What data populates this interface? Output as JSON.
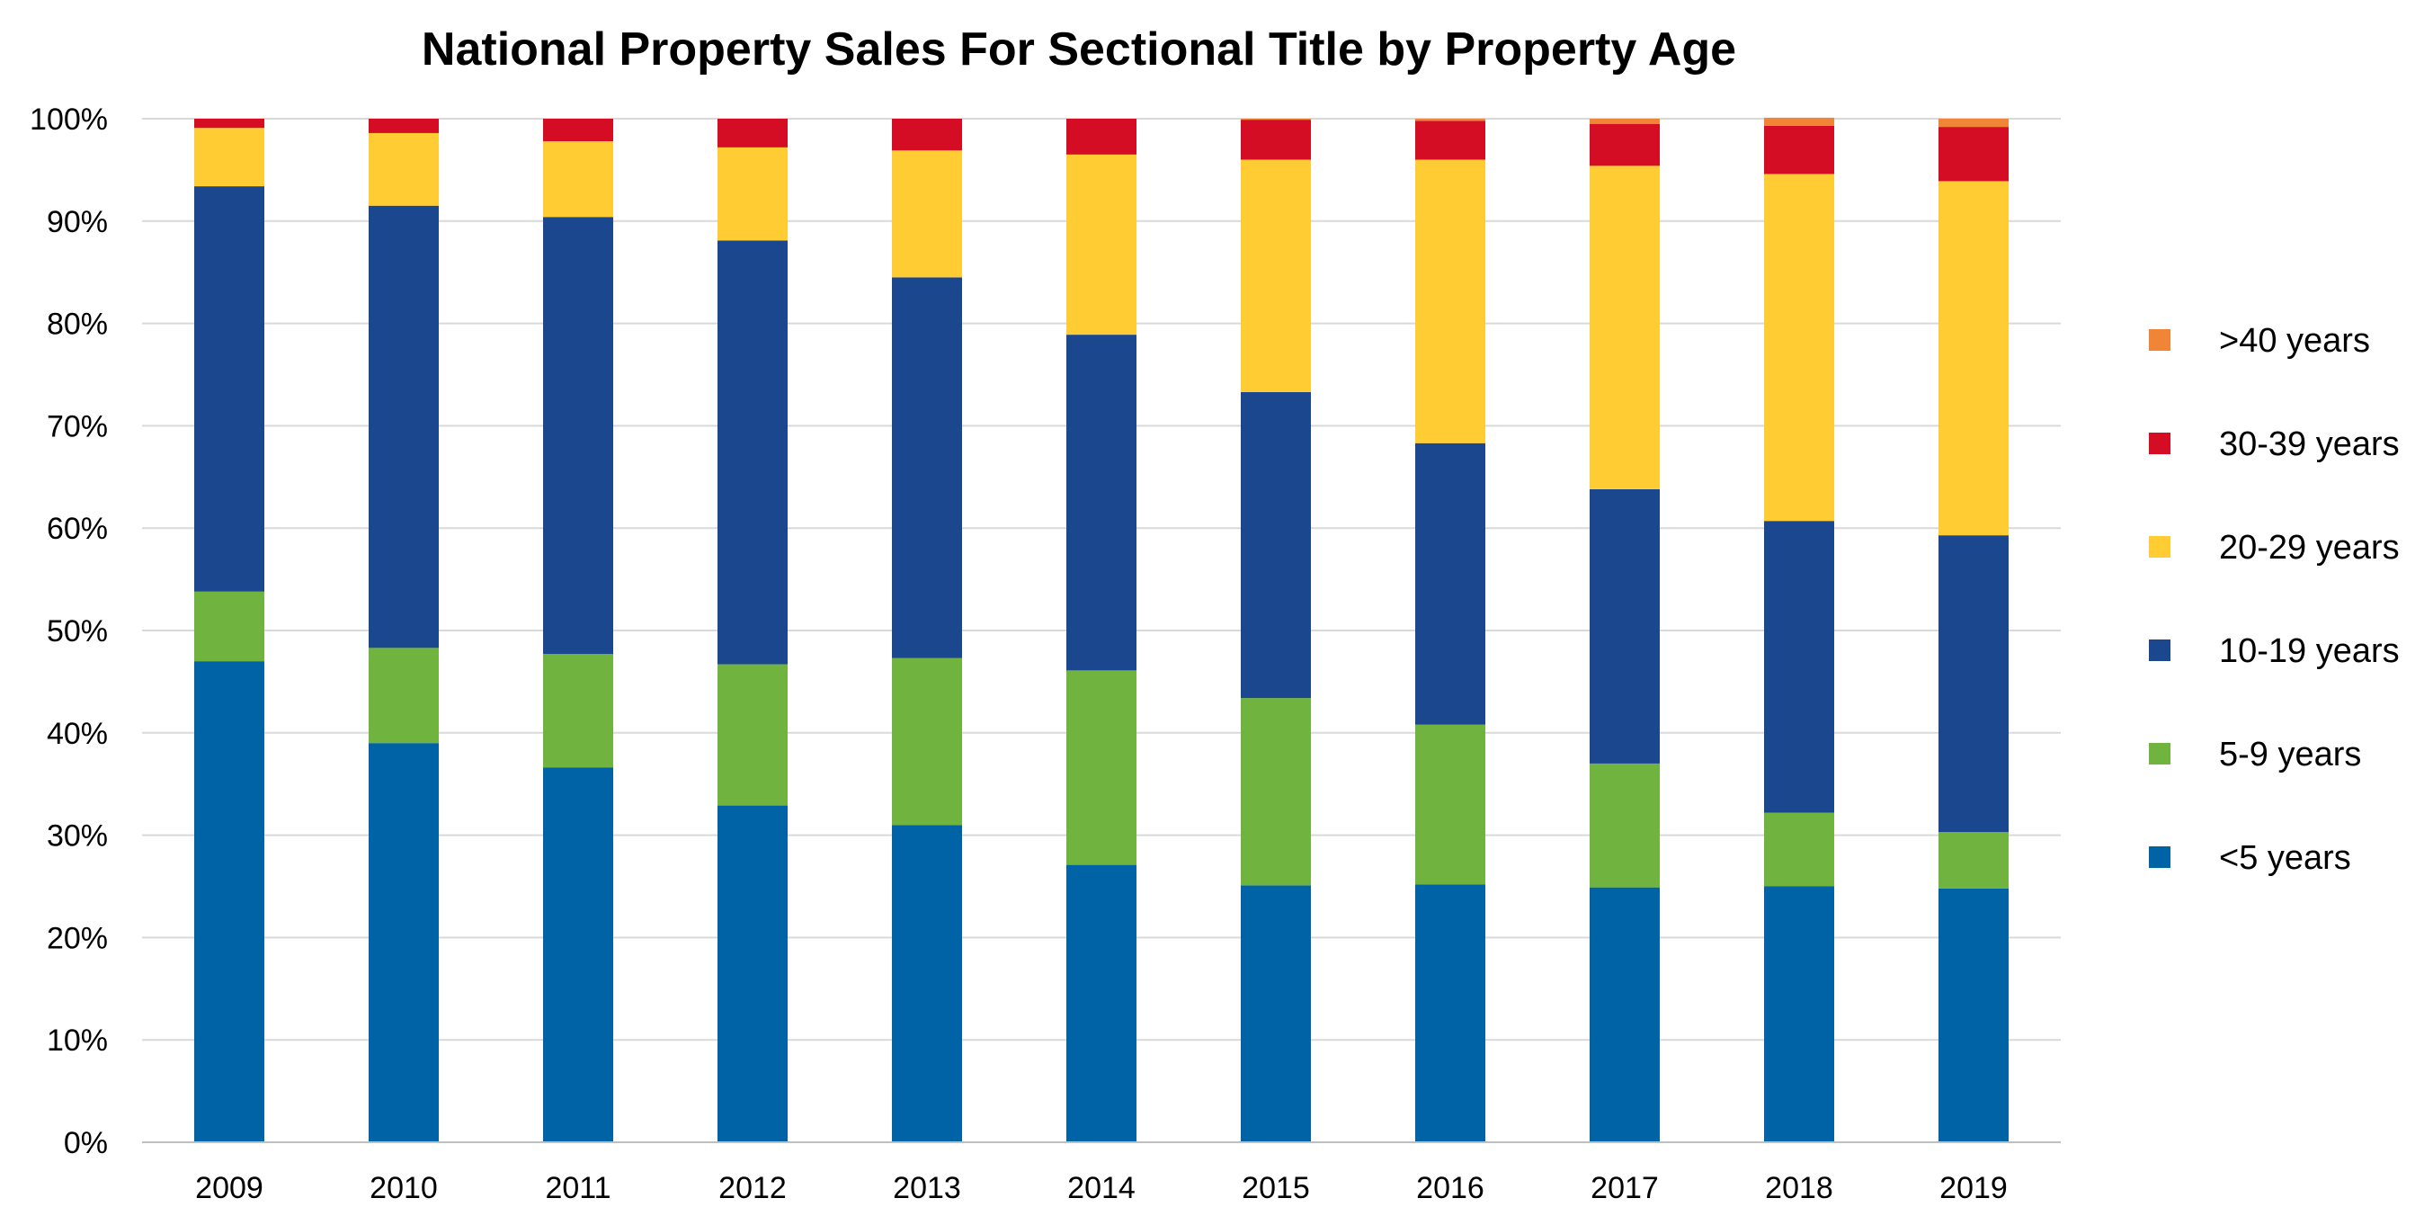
{
  "chart_data": {
    "type": "bar",
    "stacked": true,
    "title": "National Property Sales For Sectional Title by Property Age",
    "xlabel": "",
    "ylabel": "",
    "ylim": [
      0,
      100
    ],
    "y_ticks": [
      "0%",
      "10%",
      "20%",
      "30%",
      "40%",
      "50%",
      "60%",
      "70%",
      "80%",
      "90%",
      "100%"
    ],
    "grid": true,
    "legend_position": "right",
    "categories": [
      "2009",
      "2010",
      "2011",
      "2012",
      "2013",
      "2014",
      "2015",
      "2016",
      "2017",
      "2018",
      "2019"
    ],
    "series": [
      {
        "name": "<5 years",
        "color": "#0063A6",
        "values": [
          47.0,
          39.0,
          36.6,
          32.9,
          31.0,
          27.1,
          25.1,
          25.2,
          24.9,
          25.0,
          24.8
        ]
      },
      {
        "name": "5-9 years",
        "color": "#70B33E",
        "values": [
          6.8,
          9.3,
          11.1,
          13.8,
          16.3,
          19.0,
          18.3,
          15.6,
          12.1,
          7.2,
          5.5
        ]
      },
      {
        "name": "10-19 years",
        "color": "#1B478E",
        "values": [
          39.6,
          43.2,
          42.7,
          41.4,
          37.2,
          32.8,
          29.9,
          27.5,
          26.8,
          28.5,
          29.0
        ]
      },
      {
        "name": "20-29 years",
        "color": "#FFCC33",
        "values": [
          5.7,
          7.1,
          7.4,
          9.1,
          12.4,
          17.6,
          22.7,
          27.7,
          31.6,
          33.9,
          34.6
        ]
      },
      {
        "name": "30-39 years",
        "color": "#D40C24",
        "values": [
          0.9,
          1.4,
          2.2,
          2.8,
          3.1,
          3.5,
          3.9,
          3.8,
          4.1,
          4.7,
          5.3
        ]
      },
      {
        "name": ">40 years",
        "color": "#F08537",
        "values": [
          0.0,
          0.0,
          0.0,
          0.0,
          0.0,
          0.0,
          0.1,
          0.2,
          0.5,
          0.8,
          0.8
        ]
      }
    ],
    "legend_order": [
      ">40 years",
      "30-39 years",
      "20-29 years",
      "10-19 years",
      "5-9 years",
      "<5 years"
    ]
  },
  "colors": {
    "gridline": "#D9D9D9",
    "axis": "#BFBFBF",
    "text": "#000000"
  }
}
